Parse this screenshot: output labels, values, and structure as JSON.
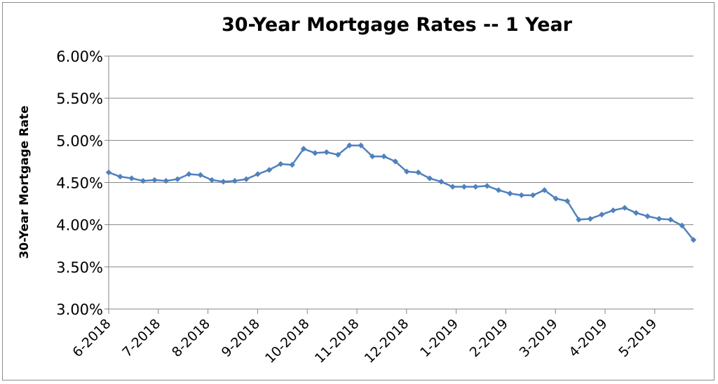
{
  "chart_data": {
    "type": "line",
    "title": "30-Year Mortgage Rates -- 1 Year",
    "xlabel": "",
    "ylabel": "30-Year Mortgage Rate",
    "ylim": [
      3.0,
      6.0
    ],
    "yticks": [
      "3.00%",
      "3.50%",
      "4.00%",
      "4.50%",
      "5.00%",
      "5.50%",
      "6.00%"
    ],
    "ytick_values": [
      3.0,
      3.5,
      4.0,
      4.5,
      5.0,
      5.5,
      6.0
    ],
    "xticks": [
      "6-2018",
      "7-2018",
      "8-2018",
      "9-2018",
      "10-2018",
      "11-2018",
      "12-2018",
      "1-2019",
      "2-2019",
      "3-2019",
      "4-2019",
      "5-2019"
    ],
    "grid": true,
    "legend": "none",
    "line_color": "#4f81bd",
    "series": [
      {
        "values": [
          4.62,
          4.57,
          4.55,
          4.52,
          4.53,
          4.52,
          4.54,
          4.6,
          4.59,
          4.53,
          4.51,
          4.52,
          4.54,
          4.6,
          4.65,
          4.72,
          4.71,
          4.9,
          4.85,
          4.86,
          4.83,
          4.94,
          4.94,
          4.81,
          4.81,
          4.75,
          4.63,
          4.62,
          4.55,
          4.51,
          4.45,
          4.45,
          4.45,
          4.46,
          4.41,
          4.37,
          4.35,
          4.35,
          4.41,
          4.31,
          4.28,
          4.06,
          4.07,
          4.12,
          4.17,
          4.2,
          4.14,
          4.1,
          4.07,
          4.06,
          3.99,
          3.82
        ]
      }
    ]
  }
}
